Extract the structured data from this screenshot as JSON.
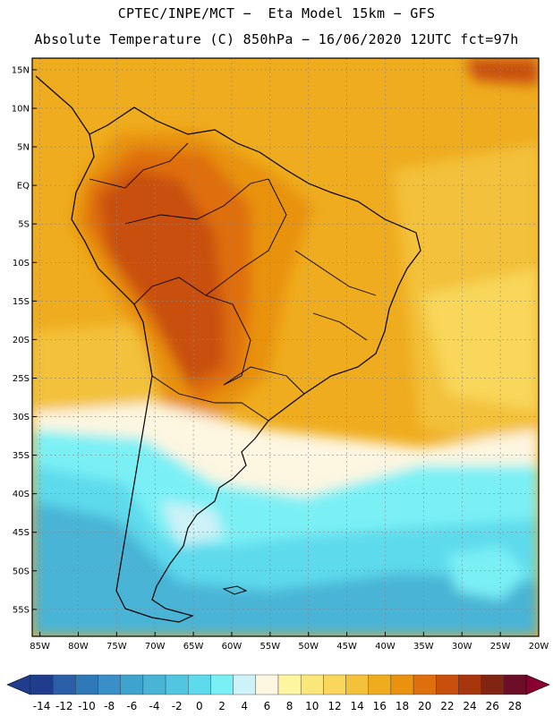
{
  "header": {
    "line1": "CPTEC/INPE/MCT −  Eta Model 15km − GFS",
    "line2": "Absolute Temperature (C) 850hPa − 16/06/2020 12UTC fct=97h"
  },
  "axes": {
    "lat_labels": [
      "15N",
      "10N",
      "5N",
      "EQ",
      "5S",
      "10S",
      "15S",
      "20S",
      "25S",
      "30S",
      "35S",
      "40S",
      "45S",
      "50S",
      "55S"
    ],
    "lon_labels": [
      "85W",
      "80W",
      "75W",
      "70W",
      "65W",
      "60W",
      "55W",
      "50W",
      "45W",
      "40W",
      "35W",
      "30W",
      "25W",
      "20W"
    ],
    "lat_range": [
      16.5,
      -58.5
    ],
    "lon_range": [
      -86,
      -20
    ]
  },
  "colorbar": {
    "labels": [
      "-14",
      "-12",
      "-10",
      "-8",
      "-6",
      "-4",
      "-2",
      "0",
      "2",
      "4",
      "6",
      "8",
      "10",
      "12",
      "14",
      "16",
      "18",
      "20",
      "22",
      "24",
      "26",
      "28"
    ],
    "colors": [
      "#1f3d8c",
      "#2a5ea6",
      "#2f79b8",
      "#3a8fc8",
      "#3fa3cf",
      "#48b4d6",
      "#52c6e0",
      "#5ddaec",
      "#7af0f5",
      "#cdf2f8",
      "#fdf6e0",
      "#fdf5a0",
      "#fbe67a",
      "#f8d75a",
      "#f3c13a",
      "#efac1e",
      "#e89210",
      "#df6e0c",
      "#c8500c",
      "#a8360c",
      "#822412",
      "#6d0e28"
    ]
  },
  "map": {
    "land_regions": [
      "South America"
    ]
  }
}
